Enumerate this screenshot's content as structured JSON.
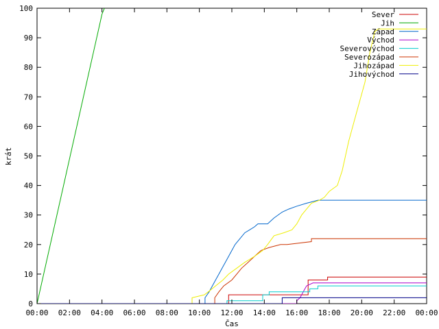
{
  "chart_data": {
    "type": "line",
    "xlabel": "Čas",
    "ylabel": "krát",
    "xlim": [
      0,
      24
    ],
    "ylim": [
      0,
      100
    ],
    "x_ticks": [
      0,
      2,
      4,
      6,
      8,
      10,
      12,
      14,
      16,
      18,
      20,
      22,
      24
    ],
    "x_tick_labels": [
      "00:00",
      "02:00",
      "04:00",
      "06:00",
      "08:00",
      "10:00",
      "12:00",
      "14:00",
      "16:00",
      "18:00",
      "20:00",
      "22:00",
      "00:00"
    ],
    "y_ticks": [
      0,
      10,
      20,
      30,
      40,
      50,
      60,
      70,
      80,
      90,
      100
    ],
    "y_tick_labels": [
      "0",
      "10",
      "20",
      "30",
      "40",
      "50",
      "60",
      "70",
      "80",
      "90",
      "100"
    ],
    "grid": false,
    "legend_position": "top-right",
    "series": [
      {
        "name": "Sever",
        "color": "#cc0000",
        "x": [
          0,
          11.8,
          11.8,
          12.2,
          12.2,
          16.7,
          16.7,
          17.9,
          17.9,
          24
        ],
        "y": [
          0,
          0,
          3,
          3,
          3,
          3,
          8,
          8,
          9,
          9
        ]
      },
      {
        "name": "Jih",
        "color": "#00aa00",
        "x": [
          0,
          4.0,
          4.15
        ],
        "y": [
          0,
          98,
          100
        ]
      },
      {
        "name": "Západ",
        "color": "#0066cc",
        "x": [
          0,
          10.35,
          10.35,
          10.6,
          10.8,
          11.0,
          11.2,
          11.4,
          11.6,
          11.8,
          12.0,
          12.2,
          12.5,
          12.8,
          13.1,
          13.4,
          13.6,
          14.2,
          14.6,
          15.1,
          15.5,
          16.0,
          16.6,
          17.3,
          24
        ],
        "y": [
          0,
          0,
          2,
          4,
          6,
          8,
          10,
          12,
          14,
          16,
          18,
          20,
          22,
          24,
          25,
          26,
          27,
          27,
          29,
          31,
          32,
          33,
          34,
          35,
          35
        ]
      },
      {
        "name": "Východ",
        "color": "#aa00cc",
        "x": [
          0,
          16.0,
          16.0,
          16.2,
          16.4,
          16.6,
          17.0,
          17.4,
          24
        ],
        "y": [
          0,
          0,
          1,
          2,
          4,
          6,
          7,
          7,
          7
        ]
      },
      {
        "name": "Severovýchod",
        "color": "#00cccc",
        "x": [
          0,
          11.7,
          11.7,
          13.9,
          13.9,
          14.3,
          14.3,
          16.8,
          16.8,
          17.3,
          17.3,
          24
        ],
        "y": [
          0,
          0,
          1,
          1,
          3,
          3,
          4,
          4,
          5,
          5,
          6,
          6
        ]
      },
      {
        "name": "Severozápad",
        "color": "#cc3300",
        "x": [
          0,
          10.95,
          10.95,
          11.2,
          11.5,
          12.0,
          12.3,
          12.6,
          13.0,
          13.4,
          13.8,
          14.3,
          15.0,
          15.4,
          16.9,
          16.9,
          24
        ],
        "y": [
          0,
          0,
          2,
          4,
          6,
          8,
          10,
          12,
          14,
          16,
          18,
          19,
          20,
          20,
          21,
          22,
          22
        ]
      },
      {
        "name": "Jihozápad",
        "color": "#eeee00",
        "x": [
          0,
          9.55,
          9.55,
          10.3,
          10.55,
          11.0,
          11.45,
          11.8,
          12.3,
          12.8,
          13.4,
          13.9,
          14.2,
          14.6,
          15.2,
          15.7,
          16.0,
          16.3,
          16.6,
          16.9,
          17.4,
          17.7,
          18.0,
          18.5,
          18.8,
          19.2,
          19.7,
          20.2,
          20.5,
          20.8,
          21.0,
          21.2,
          24
        ],
        "y": [
          0,
          0,
          2,
          3,
          4,
          6,
          8,
          10,
          12,
          14,
          16,
          18,
          20,
          23,
          24,
          25,
          27,
          30,
          32,
          34,
          35,
          36,
          38,
          40,
          45,
          55,
          65,
          75,
          85,
          92,
          93,
          93,
          93
        ]
      },
      {
        "name": "Jihovýchod",
        "color": "#000088",
        "x": [
          0,
          15.1,
          15.1,
          17.2,
          24
        ],
        "y": [
          0,
          0,
          2,
          2,
          2
        ]
      }
    ]
  }
}
